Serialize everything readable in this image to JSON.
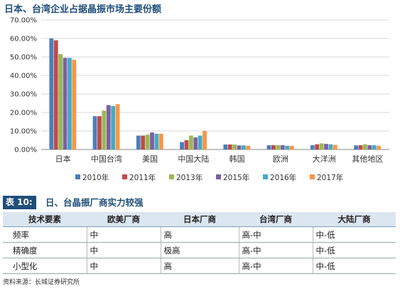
{
  "chart_data": {
    "type": "bar",
    "title": "日本、台湾企业占据晶振市场主要份额",
    "categories": [
      "日本",
      "中国台湾",
      "美国",
      "中国大陆",
      "韩国",
      "欧洲",
      "大洋洲",
      "其他地区"
    ],
    "series": [
      {
        "name": "2010年",
        "color": "#4a7ebb",
        "values": [
          60.0,
          18.0,
          7.5,
          4.0,
          2.7,
          2.3,
          2.3,
          2.2
        ]
      },
      {
        "name": "2011年",
        "color": "#be4b48",
        "values": [
          59.0,
          18.0,
          7.5,
          5.0,
          2.7,
          2.3,
          2.8,
          2.3
        ]
      },
      {
        "name": "2013年",
        "color": "#98b954",
        "values": [
          51.5,
          21.0,
          8.0,
          7.5,
          2.7,
          2.3,
          3.3,
          2.8
        ]
      },
      {
        "name": "2015年",
        "color": "#7d60a0",
        "values": [
          49.5,
          24.0,
          9.2,
          6.5,
          2.2,
          2.3,
          3.0,
          2.3
        ]
      },
      {
        "name": "2016年",
        "color": "#46aac4",
        "values": [
          49.5,
          23.5,
          8.5,
          7.5,
          2.2,
          2.0,
          2.8,
          2.3
        ]
      },
      {
        "name": "2017年",
        "color": "#f79646",
        "values": [
          48.5,
          24.5,
          8.5,
          10.0,
          2.0,
          2.0,
          2.5,
          2.0
        ]
      }
    ],
    "ylim": [
      0,
      70
    ],
    "yticks": [
      "0.00%",
      "10.00%",
      "20.00%",
      "30.00%",
      "40.00%",
      "50.00%",
      "60.00%",
      "70.00%"
    ],
    "grid": true,
    "legend": "bottom"
  },
  "table": {
    "number": "表 10:",
    "caption": "日、台晶振厂商实力较强",
    "headers": [
      "技术要素",
      "欧美厂商",
      "日本厂商",
      "台湾厂商",
      "大陆厂商"
    ],
    "rows": [
      [
        "频率",
        "中",
        "高",
        "高-中",
        "中-低"
      ],
      [
        "精确度",
        "中",
        "极高",
        "高-中",
        "中-低"
      ],
      [
        "小型化",
        "中",
        "高",
        "高-中",
        "中-低"
      ]
    ]
  },
  "source": "资料来源：长城证券研究所"
}
